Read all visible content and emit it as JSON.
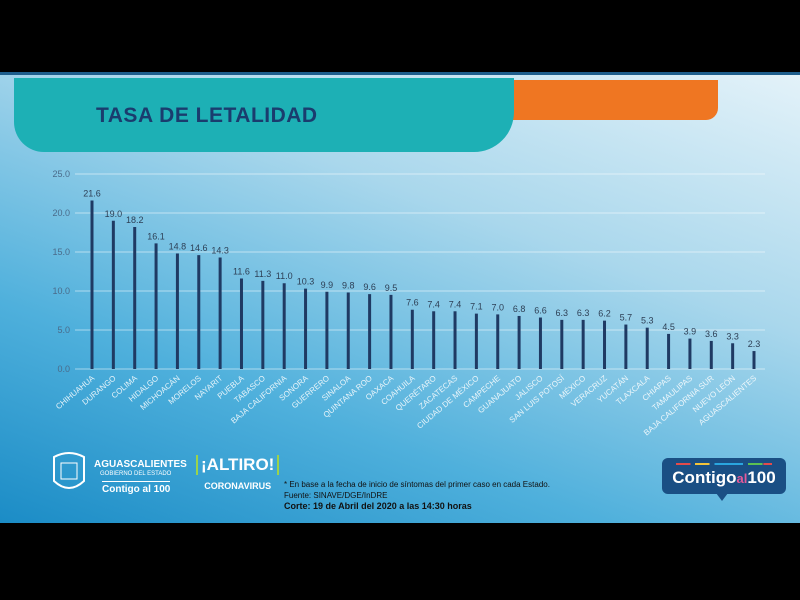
{
  "header": {
    "title": "TASA DE LETALIDAD"
  },
  "chart_data": {
    "type": "bar",
    "title": "TASA DE LETALIDAD",
    "xlabel": "",
    "ylabel": "",
    "ylim": [
      0,
      25
    ],
    "yticks": [
      "0.0",
      "5.0",
      "10.0",
      "15.0",
      "20.0",
      "25.0"
    ],
    "grid": true,
    "categories": [
      "CHIHUAHUA",
      "DURANGO",
      "COLIMA",
      "HIDALGO",
      "MICHOACÁN",
      "MORELOS",
      "NAYARIT",
      "PUEBLA",
      "TABASCO",
      "BAJA CALIFORNIA",
      "SONORA",
      "GUERRERO",
      "SINALOA",
      "QUINTANA ROO",
      "OAXACA",
      "COAHUILA",
      "QUERÉTARO",
      "ZACATECAS",
      "CIUDAD DE MÉXICO",
      "CAMPECHE",
      "GUANAJUATO",
      "JALISCO",
      "SAN LUIS POTOSÍ",
      "MÉXICO",
      "VERACRUZ",
      "YUCATÁN",
      "TLAXCALA",
      "CHIAPAS",
      "TAMAULIPAS",
      "BAJA CALIFORNIA SUR",
      "NUEVO LEÓN",
      "AGUASCALIENTES"
    ],
    "values": [
      21.6,
      19.0,
      18.2,
      16.1,
      14.8,
      14.6,
      14.3,
      11.6,
      11.3,
      11.0,
      10.3,
      9.9,
      9.8,
      9.6,
      9.5,
      7.6,
      7.4,
      7.4,
      7.1,
      7.0,
      6.8,
      6.6,
      6.3,
      6.3,
      6.2,
      5.7,
      5.3,
      4.5,
      3.9,
      3.6,
      3.3,
      2.3
    ],
    "labels": [
      "21.6",
      "19.0",
      "18.2",
      "16.1",
      "14.8",
      "14.6",
      "14.3",
      "11.6",
      "11.3",
      "11.0",
      "10.3",
      "9.9",
      "9.8",
      "9.6",
      "9.5",
      "7.6",
      "7.4",
      "7.4",
      "7.1",
      "7.0",
      "6.8",
      "6.6",
      "6.3",
      "6.3",
      "6.2",
      "5.7",
      "5.3",
      "4.5",
      "3.9",
      "3.6",
      "3.3",
      "2.3"
    ],
    "bar_color": "#1f3a63"
  },
  "footer": {
    "logo_state": "AGUASCALIENTES",
    "logo_state_sub": "GOBIERNO DEL ESTADO",
    "logo_contigo": "Contigo al 100",
    "altiro": "¡ALTIRO!",
    "altiro_sub": "CORONAVIRUS",
    "note": "* En base a la fecha de inicio de síntomas del primer caso en cada Estado.",
    "source": "Fuente: SINAVE/DGE/InDRE",
    "cutoff": "Corte: 19 de Abril del 2020 a las 14:30 horas",
    "badge_contigo": "Contigo",
    "badge_al": "al",
    "badge_100": "100"
  }
}
